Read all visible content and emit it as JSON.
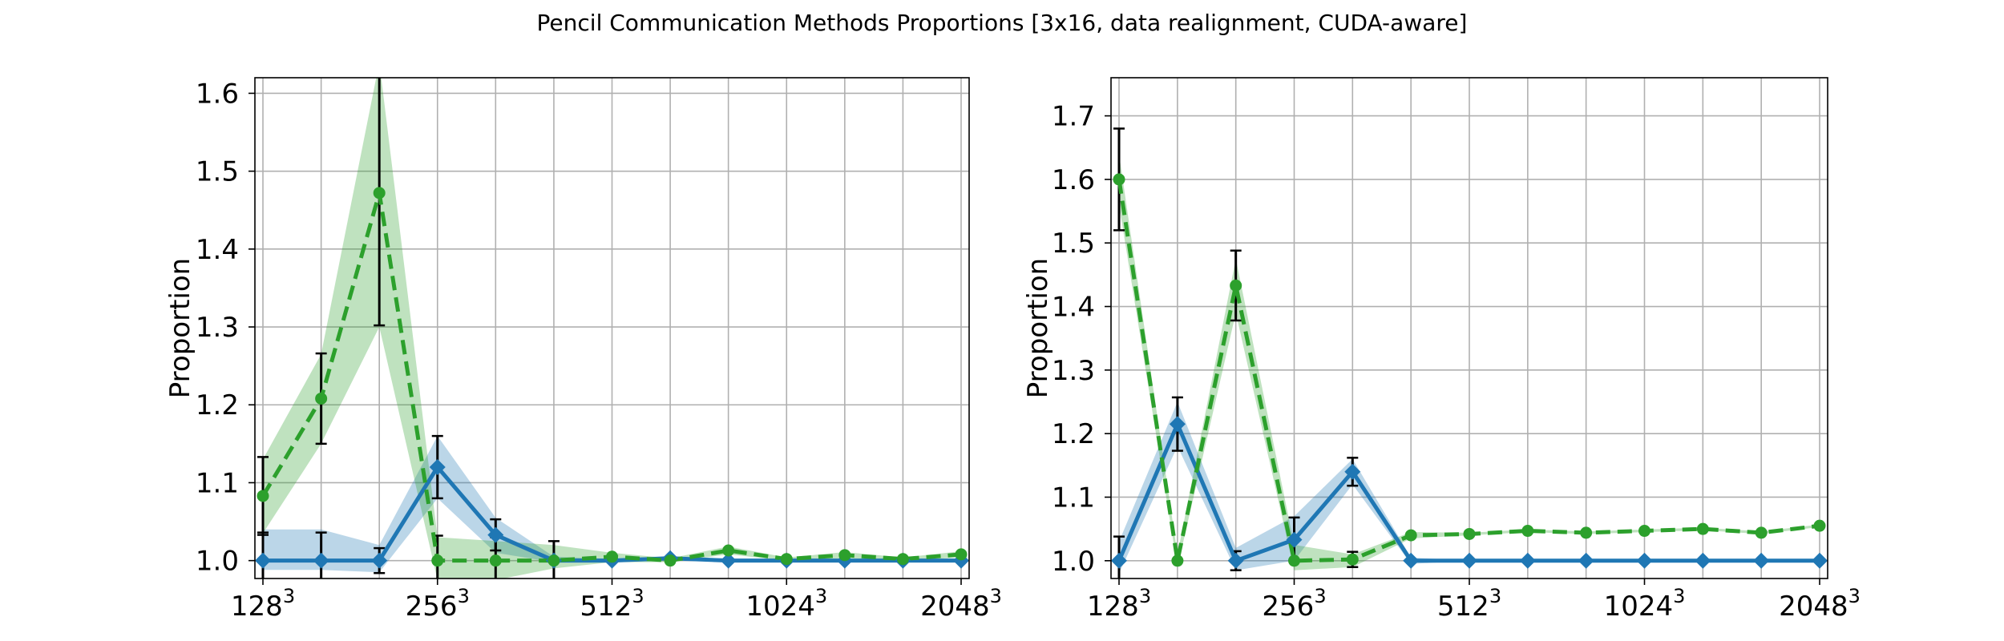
{
  "figure": {
    "title": "Pencil Communication Methods Proportions [3x16, data realignment, CUDA-aware]"
  },
  "colors": {
    "blue": "#1f77b4",
    "green": "#2ca02c",
    "grid": "#b0b0b0",
    "errorbar": "#000000"
  },
  "chart_data": [
    {
      "type": "line",
      "ylabel": "Proportion",
      "xlabel": "",
      "x_scale": "log2",
      "x": [
        128,
        161.3,
        203.2,
        256,
        322.5,
        406.4,
        512,
        645.1,
        812.7,
        1024,
        1290.2,
        1625.5,
        2048
      ],
      "x_tick_values": [
        128,
        256,
        512,
        1024,
        2048
      ],
      "x_tick_labels": [
        {
          "base": "128",
          "exp": "3"
        },
        {
          "base": "256",
          "exp": "3"
        },
        {
          "base": "512",
          "exp": "3"
        },
        {
          "base": "1024",
          "exp": "3"
        },
        {
          "base": "2048",
          "exp": "3"
        }
      ],
      "ylim": [
        0.977,
        1.62
      ],
      "y_ticks": [
        "1.0",
        "1.1",
        "1.2",
        "1.3",
        "1.4",
        "1.5",
        "1.6"
      ],
      "grid": true,
      "series": [
        {
          "style": "solid",
          "marker": "diamond",
          "color": "#1f77b4",
          "values": [
            1.0,
            1.0,
            1.0,
            1.12,
            1.033,
            1.0,
            1.0,
            1.003,
            1.0,
            1.0,
            1.0,
            1.0,
            1.0
          ],
          "band_low": [
            0.988,
            0.988,
            0.985,
            1.08,
            1.01,
            0.998,
            0.998,
            1.0,
            1.0,
            1.0,
            1.0,
            1.0,
            1.0
          ],
          "band_high": [
            1.04,
            1.04,
            1.02,
            1.16,
            1.055,
            1.005,
            1.002,
            1.006,
            1.0,
            1.0,
            1.0,
            1.0,
            1.0
          ],
          "err": [
            0.036,
            0.036,
            0.016,
            0.04,
            0.02,
            0.0,
            0.0,
            0.0,
            0.0,
            0.0,
            0.0,
            0.0,
            0.0
          ]
        },
        {
          "style": "dashed",
          "marker": "circle",
          "color": "#2ca02c",
          "values": [
            1.083,
            1.208,
            1.472,
            1.0,
            1.0,
            1.0,
            1.005,
            1.0,
            1.013,
            1.002,
            1.007,
            1.002,
            1.008
          ],
          "band_low": [
            1.035,
            1.15,
            1.3,
            0.975,
            0.975,
            0.99,
            0.998,
            0.998,
            1.008,
            1.0,
            1.003,
            1.0,
            1.004
          ],
          "band_high": [
            1.13,
            1.265,
            1.64,
            1.03,
            1.025,
            1.02,
            1.01,
            1.003,
            1.018,
            1.004,
            1.011,
            1.004,
            1.012
          ],
          "err": [
            0.05,
            0.058,
            0.17,
            0.032,
            0.03,
            0.025,
            0.0,
            0.0,
            0.0,
            0.0,
            0.0,
            0.0,
            0.0
          ]
        }
      ]
    },
    {
      "type": "line",
      "ylabel": "Proportion",
      "xlabel": "",
      "x_scale": "log2",
      "x": [
        128,
        161.3,
        203.2,
        256,
        322.5,
        406.4,
        512,
        645.1,
        812.7,
        1024,
        1290.2,
        1625.5,
        2048
      ],
      "x_tick_values": [
        128,
        256,
        512,
        1024,
        2048
      ],
      "x_tick_labels": [
        {
          "base": "128",
          "exp": "3"
        },
        {
          "base": "256",
          "exp": "3"
        },
        {
          "base": "512",
          "exp": "3"
        },
        {
          "base": "1024",
          "exp": "3"
        },
        {
          "base": "2048",
          "exp": "3"
        }
      ],
      "ylim": [
        0.972,
        1.76
      ],
      "y_ticks": [
        "1.0",
        "1.1",
        "1.2",
        "1.3",
        "1.4",
        "1.5",
        "1.6",
        "1.7"
      ],
      "grid": true,
      "series": [
        {
          "style": "solid",
          "marker": "diamond",
          "color": "#1f77b4",
          "values": [
            1.0,
            1.215,
            1.0,
            1.033,
            1.14,
            1.0,
            1.0,
            1.0,
            1.0,
            1.0,
            1.0,
            1.0,
            1.0
          ],
          "band_low": [
            0.98,
            1.18,
            0.985,
            1.0,
            1.12,
            0.995,
            1.0,
            1.0,
            1.0,
            1.0,
            1.0,
            1.0,
            1.0
          ],
          "band_high": [
            1.03,
            1.25,
            1.02,
            1.07,
            1.16,
            1.005,
            1.0,
            1.0,
            1.0,
            1.0,
            1.0,
            1.0,
            1.0
          ],
          "err": [
            0.038,
            0.042,
            0.015,
            0.035,
            0.022,
            0.0,
            0.0,
            0.0,
            0.0,
            0.0,
            0.0,
            0.0,
            0.0
          ]
        },
        {
          "style": "dashed",
          "marker": "circle",
          "color": "#2ca02c",
          "values": [
            1.6,
            1.0,
            1.433,
            1.0,
            1.002,
            1.04,
            1.042,
            1.047,
            1.044,
            1.047,
            1.05,
            1.044,
            1.055
          ],
          "band_low": [
            1.56,
            0.99,
            1.39,
            0.985,
            0.99,
            1.035,
            1.04,
            1.045,
            1.042,
            1.045,
            1.048,
            1.042,
            1.053
          ],
          "band_high": [
            1.64,
            1.01,
            1.475,
            1.025,
            1.01,
            1.045,
            1.044,
            1.049,
            1.046,
            1.049,
            1.052,
            1.046,
            1.057
          ],
          "err": [
            0.08,
            0.0,
            0.055,
            0.0,
            0.012,
            0.0,
            0.0,
            0.0,
            0.0,
            0.0,
            0.0,
            0.0,
            0.0
          ]
        }
      ]
    }
  ]
}
